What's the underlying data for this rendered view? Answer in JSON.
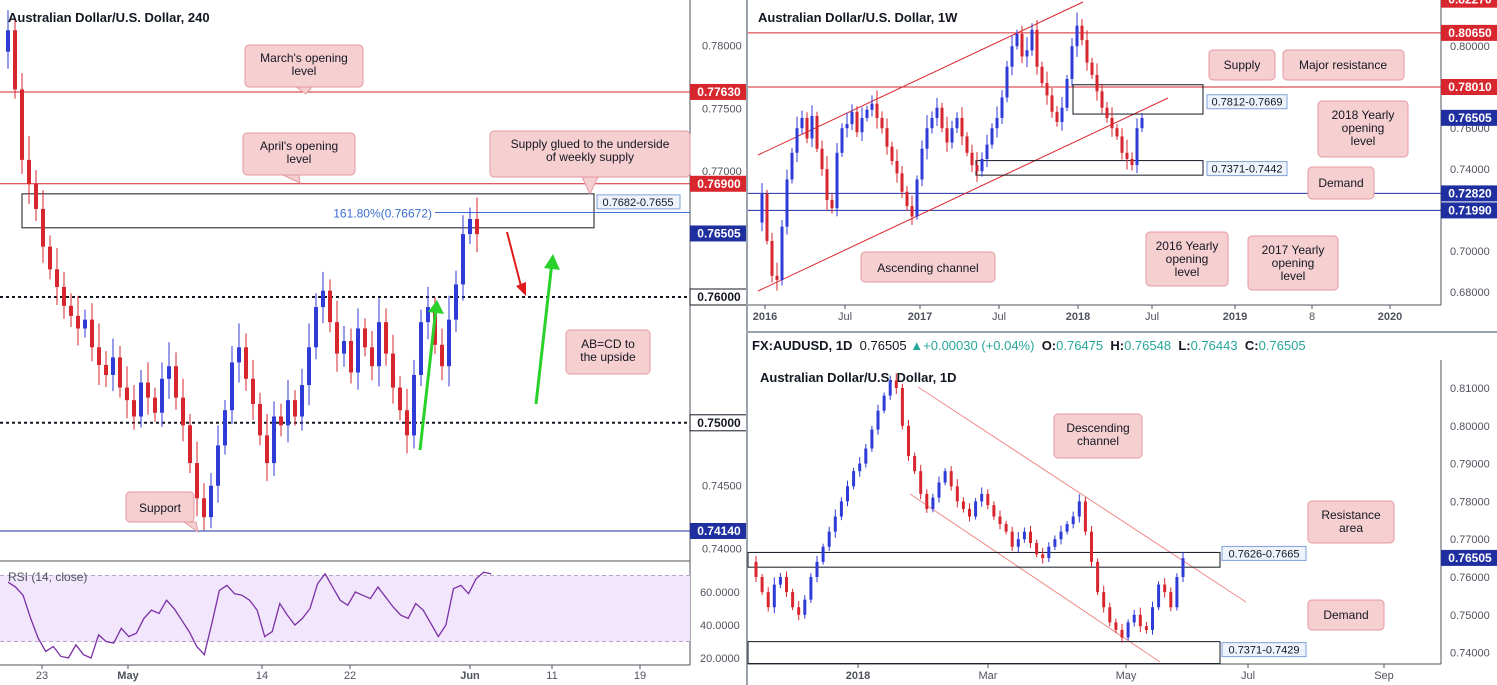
{
  "colors": {
    "bull": "#2f3bd6",
    "bear": "#d7262e",
    "red_line": "#d7262e",
    "blue_line": "#1f2fa0",
    "note_fill": "#f6cfd0",
    "note_stroke": "#e39aa0",
    "green": "#2ad12a",
    "rsi": "#7b2fa6"
  },
  "chart_data": [
    {
      "type": "candlestick",
      "panel": "h4",
      "title": "Australian Dollar/U.S. Dollar, 240",
      "x_ticks": [
        "23",
        "May",
        "14",
        "22",
        "Jun",
        "11",
        "19"
      ],
      "y_ticks": [
        "0.78000",
        "0.77500",
        "0.77000",
        "0.74500",
        "0.74000"
      ],
      "price_tags": [
        {
          "label": "0.77630",
          "value": 0.7763,
          "kind": "red"
        },
        {
          "label": "0.76900",
          "value": 0.769,
          "kind": "red"
        },
        {
          "label": "0.76505",
          "value": 0.76505,
          "kind": "blue"
        },
        {
          "label": "0.76000",
          "value": 0.76,
          "kind": "plain"
        },
        {
          "label": "0.75000",
          "value": 0.75,
          "kind": "plain"
        },
        {
          "label": "0.74140",
          "value": 0.7414,
          "kind": "blue"
        }
      ],
      "levels": [
        {
          "value": 0.7763,
          "style": "red"
        },
        {
          "value": 0.769,
          "style": "red"
        },
        {
          "value": 0.76,
          "style": "dotted"
        },
        {
          "value": 0.75,
          "style": "dotted"
        },
        {
          "value": 0.7414,
          "style": "blue"
        }
      ],
      "zone": {
        "low": 0.7655,
        "high": 0.7682,
        "label": "0.7682-0.7655"
      },
      "fib": {
        "label": "161.80%(0.76672)",
        "value": 0.76672
      },
      "annotations": [
        "March's opening level",
        "April's opening level",
        "Supply glued to the underside of weekly supply",
        "AB=CD to the upside",
        "Support"
      ],
      "ohlc_path": [
        0.7795,
        0.7812,
        0.7765,
        0.7709,
        0.769,
        0.767,
        0.764,
        0.7622,
        0.7608,
        0.7593,
        0.7585,
        0.7575,
        0.7582,
        0.756,
        0.7546,
        0.7538,
        0.7552,
        0.7528,
        0.7518,
        0.7505,
        0.7532,
        0.752,
        0.7508,
        0.7535,
        0.7545,
        0.752,
        0.7498,
        0.7468,
        0.744,
        0.7425,
        0.745,
        0.7482,
        0.751,
        0.7548,
        0.756,
        0.7535,
        0.7515,
        0.749,
        0.7468,
        0.7505,
        0.7498,
        0.7518,
        0.7505,
        0.753,
        0.756,
        0.7592,
        0.7605,
        0.758,
        0.7555,
        0.7565,
        0.754,
        0.7575,
        0.756,
        0.7545,
        0.758,
        0.7555,
        0.7528,
        0.751,
        0.749,
        0.7538,
        0.758,
        0.7592,
        0.7562,
        0.7545,
        0.7582,
        0.761,
        0.765,
        0.7662,
        0.765
      ]
    },
    {
      "type": "line",
      "panel": "rsi",
      "title": "RSI (14, close)",
      "y_ticks": [
        "60.0000",
        "40.0000",
        "20.0000"
      ],
      "values": [
        66,
        63,
        58,
        44,
        32,
        24,
        27,
        21,
        20,
        28,
        22,
        20,
        34,
        30,
        29,
        38,
        33,
        35,
        44,
        49,
        47,
        55,
        50,
        43,
        36,
        27,
        22,
        41,
        61,
        64,
        59,
        58,
        55,
        49,
        33,
        36,
        53,
        46,
        40,
        44,
        50,
        65,
        71,
        63,
        55,
        52,
        60,
        58,
        56,
        63,
        57,
        51,
        46,
        44,
        53,
        49,
        41,
        33,
        40,
        62,
        64,
        59,
        68,
        72,
        71
      ]
    },
    {
      "type": "candlestick",
      "panel": "weekly",
      "title": "Australian Dollar/U.S. Dollar, 1W",
      "x_ticks": [
        "2016",
        "Jul",
        "2017",
        "Jul",
        "2018",
        "Jul",
        "2019",
        "8",
        "2020"
      ],
      "y_ticks": [
        "0.80000",
        "0.76000",
        "0.74000",
        "0.70000",
        "0.68000"
      ],
      "price_tags": [
        {
          "label": "0.82270",
          "value": 0.8227,
          "kind": "red"
        },
        {
          "label": "0.80650",
          "value": 0.8065,
          "kind": "red"
        },
        {
          "label": "0.78010",
          "value": 0.7801,
          "kind": "red"
        },
        {
          "label": "0.76505",
          "value": 0.76505,
          "kind": "blue"
        },
        {
          "label": "0.72820",
          "value": 0.7282,
          "kind": "blue"
        },
        {
          "label": "0.71990",
          "value": 0.7199,
          "kind": "blue"
        }
      ],
      "levels": [
        {
          "value": 0.8065,
          "style": "red"
        },
        {
          "value": 0.7801,
          "style": "red"
        },
        {
          "value": 0.7282,
          "style": "blue"
        },
        {
          "value": 0.7199,
          "style": "blue"
        }
      ],
      "zones": [
        {
          "low": 0.7669,
          "high": 0.7812,
          "label": "0.7812-0.7669"
        },
        {
          "low": 0.7371,
          "high": 0.7442,
          "label": "0.7371-0.7442"
        }
      ],
      "annotations": [
        "Supply",
        "Major resistance",
        "2018 Yearly opening level",
        "Demand",
        "2016 Yearly opening level",
        "2017 Yearly opening level",
        "Ascending channel"
      ],
      "ohlc_path": [
        0.714,
        0.728,
        0.705,
        0.688,
        0.686,
        0.712,
        0.735,
        0.748,
        0.76,
        0.765,
        0.755,
        0.766,
        0.75,
        0.74,
        0.725,
        0.721,
        0.748,
        0.76,
        0.762,
        0.768,
        0.758,
        0.765,
        0.769,
        0.772,
        0.765,
        0.76,
        0.751,
        0.744,
        0.738,
        0.729,
        0.722,
        0.717,
        0.735,
        0.75,
        0.76,
        0.765,
        0.77,
        0.76,
        0.753,
        0.76,
        0.765,
        0.756,
        0.748,
        0.742,
        0.739,
        0.745,
        0.752,
        0.76,
        0.765,
        0.775,
        0.79,
        0.8,
        0.806,
        0.795,
        0.798,
        0.808,
        0.79,
        0.782,
        0.776,
        0.768,
        0.763,
        0.77,
        0.784,
        0.8,
        0.81,
        0.803,
        0.792,
        0.786,
        0.778,
        0.77,
        0.765,
        0.76,
        0.756,
        0.748,
        0.745,
        0.742,
        0.76,
        0.765
      ]
    },
    {
      "type": "candlestick",
      "panel": "daily",
      "title": "Australian Dollar/U.S. Dollar, 1D",
      "header": {
        "symbol": "FX:AUDUSD, 1D",
        "last": "0.76505",
        "change": "+0.00030 (+0.04%)",
        "o_label": "O:",
        "o": "0.76475",
        "h_label": "H:",
        "h": "0.76548",
        "l_label": "L:",
        "l": "0.76443",
        "c_label": "C:",
        "c": "0.76505"
      },
      "x_ticks": [
        "2018",
        "Mar",
        "May",
        "Jul",
        "Sep"
      ],
      "y_ticks": [
        "0.81000",
        "0.80000",
        "0.79000",
        "0.78000",
        "0.77000",
        "0.76000",
        "0.75000",
        "0.74000"
      ],
      "price_tags": [
        {
          "label": "0.76505",
          "value": 0.76505,
          "kind": "blue"
        }
      ],
      "zones": [
        {
          "low": 0.7626,
          "high": 0.7665,
          "label": "0.7626-0.7665"
        },
        {
          "low": 0.7371,
          "high": 0.7429,
          "label": "0.7371-0.7429"
        }
      ],
      "annotations": [
        "Descending channel",
        "Resistance area",
        "Demand"
      ],
      "ohlc_path": [
        0.764,
        0.76,
        0.756,
        0.752,
        0.758,
        0.76,
        0.756,
        0.752,
        0.75,
        0.754,
        0.76,
        0.764,
        0.768,
        0.772,
        0.776,
        0.78,
        0.784,
        0.788,
        0.79,
        0.794,
        0.799,
        0.804,
        0.808,
        0.812,
        0.81,
        0.8,
        0.792,
        0.788,
        0.782,
        0.778,
        0.781,
        0.785,
        0.788,
        0.784,
        0.78,
        0.778,
        0.776,
        0.78,
        0.782,
        0.779,
        0.776,
        0.774,
        0.772,
        0.768,
        0.77,
        0.772,
        0.769,
        0.766,
        0.765,
        0.768,
        0.77,
        0.772,
        0.774,
        0.776,
        0.78,
        0.772,
        0.764,
        0.756,
        0.752,
        0.748,
        0.746,
        0.744,
        0.748,
        0.75,
        0.747,
        0.746,
        0.752,
        0.758,
        0.756,
        0.752,
        0.76,
        0.765
      ]
    }
  ],
  "texts": {
    "h4_title": "Australian Dollar/U.S. Dollar, 240",
    "w_title": "Australian Dollar/U.S. Dollar, 1W",
    "d_title": "Australian Dollar/U.S. Dollar, 1D",
    "rsi_title": "RSI (14, close)"
  }
}
